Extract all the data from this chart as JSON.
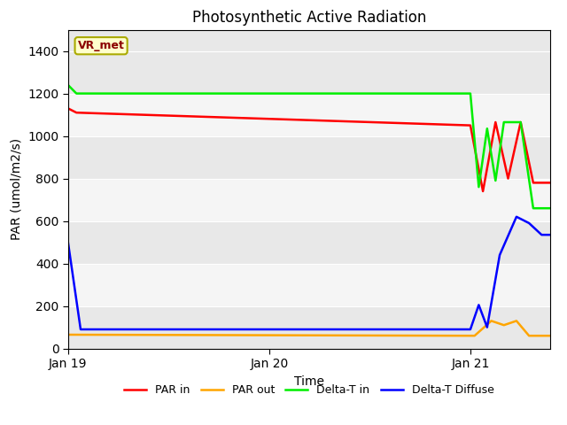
{
  "title": "Photosynthetic Active Radiation",
  "xlabel": "Time",
  "ylabel": "PAR (umol/m2/s)",
  "ylim": [
    0,
    1500
  ],
  "yticks": [
    0,
    200,
    400,
    600,
    800,
    1000,
    1200,
    1400
  ],
  "annotation_text": "VR_met",
  "annotation_color": "#8B0000",
  "annotation_bg": "#FFFFCC",
  "annotation_edge": "#AAAA00",
  "bg_bands": [
    "#E8E8E8",
    "#F5F5F5"
  ],
  "line_colors": {
    "PAR in": "#FF0000",
    "PAR out": "#FFA500",
    "Delta-T in": "#00EE00",
    "Delta-T Diffuse": "#0000FF"
  },
  "legend_labels": [
    "PAR in",
    "PAR out",
    "Delta-T in",
    "Delta-T Diffuse"
  ],
  "x_tick_labels": [
    "Jan 19",
    "Jan 20",
    "Jan 21"
  ],
  "x_tick_positions": [
    0,
    48,
    96
  ],
  "xlim": [
    0,
    115
  ]
}
